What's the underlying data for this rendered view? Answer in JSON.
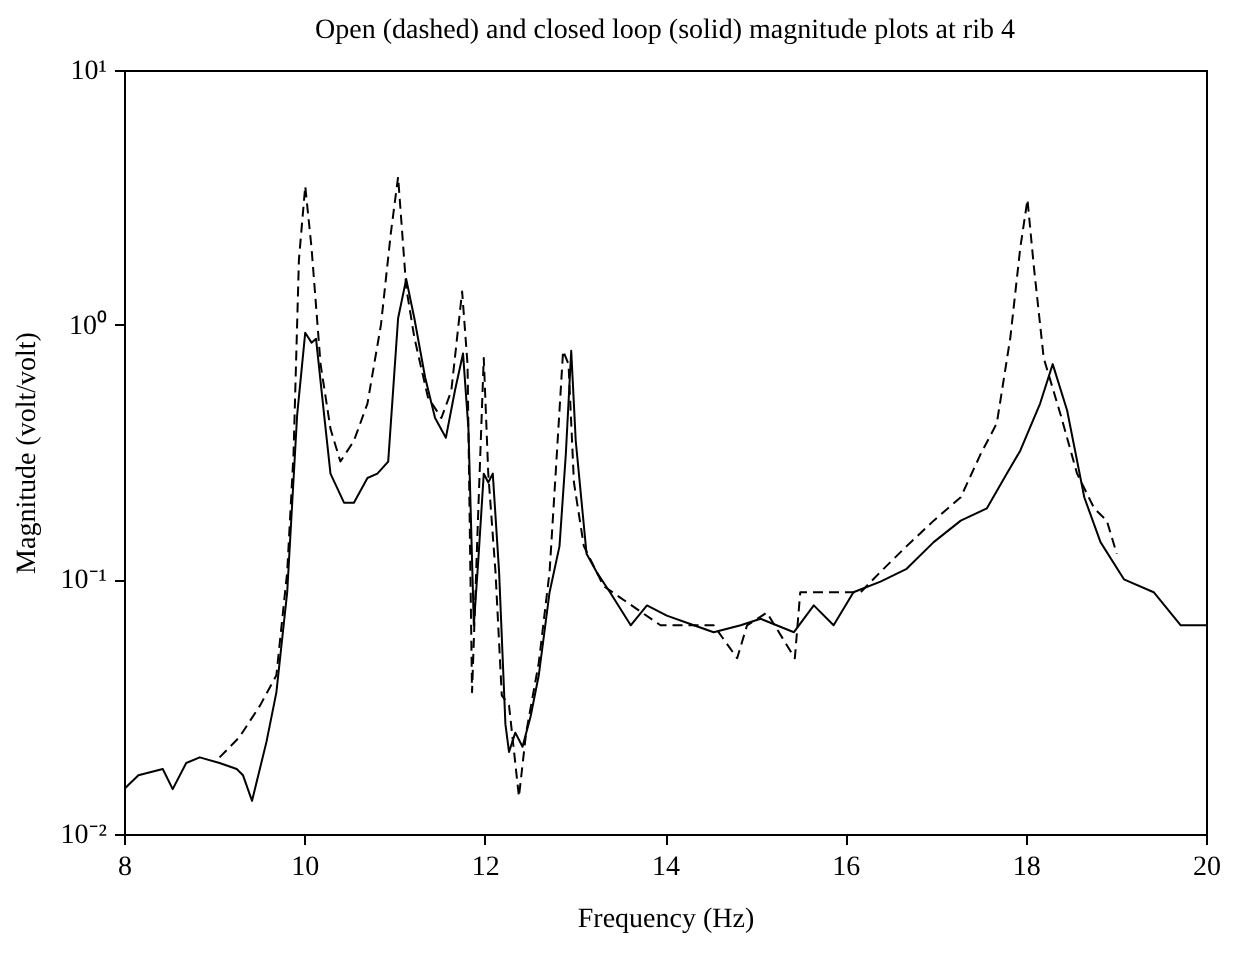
{
  "chart_data": {
    "type": "line",
    "title": "Open (dashed) and closed loop (solid) magnitude plots at rib 4",
    "xlabel": "Frequency (Hz)",
    "ylabel": "Magnitude (volt/volt)",
    "log": "y",
    "grid": false,
    "marker": "none",
    "xlim": [
      8,
      20
    ],
    "xticks": [
      8,
      10,
      12,
      14,
      16,
      18,
      20
    ],
    "ylim": [
      0.01,
      10
    ],
    "yticks": [
      {
        "value": 0.01,
        "label": "10⁻²"
      },
      {
        "value": 0.1,
        "label": "10⁻¹"
      },
      {
        "value": 1,
        "label": "10⁰"
      },
      {
        "value": 10,
        "label": "10¹"
      }
    ],
    "series": [
      {
        "color": "#000000",
        "line_style": "solid",
        "x": [
          8.0,
          8.16,
          8.43,
          8.54,
          8.69,
          8.84,
          9.06,
          9.25,
          9.32,
          9.42,
          9.58,
          9.69,
          9.81,
          9.92,
          10.01,
          10.08,
          10.13,
          10.22,
          10.29,
          10.44,
          10.55,
          10.7,
          10.81,
          10.93,
          11.04,
          11.13,
          11.22,
          11.34,
          11.45,
          11.57,
          11.67,
          11.76,
          11.82,
          11.88,
          11.93,
          11.99,
          12.04,
          12.09,
          12.16,
          12.23,
          12.27,
          12.34,
          12.42,
          12.51,
          12.6,
          12.72,
          12.83,
          12.9,
          12.96,
          13.01,
          13.13,
          13.24,
          13.39,
          13.62,
          13.8,
          14.02,
          14.32,
          14.54,
          14.84,
          15.06,
          15.43,
          15.65,
          15.87,
          16.09,
          16.39,
          16.68,
          16.98,
          17.28,
          17.57,
          17.79,
          17.94,
          18.16,
          18.3,
          18.46,
          18.65,
          18.83,
          19.09,
          19.42,
          19.72,
          20.0
        ],
        "values": [
          0.015,
          0.017,
          0.018,
          0.015,
          0.019,
          0.02,
          0.019,
          0.018,
          0.017,
          0.0135,
          0.023,
          0.036,
          0.089,
          0.44,
          0.93,
          0.85,
          0.88,
          0.44,
          0.26,
          0.2,
          0.2,
          0.25,
          0.26,
          0.29,
          1.06,
          1.51,
          1.06,
          0.62,
          0.43,
          0.36,
          0.55,
          0.77,
          0.39,
          0.066,
          0.12,
          0.26,
          0.24,
          0.26,
          0.107,
          0.027,
          0.021,
          0.025,
          0.022,
          0.029,
          0.042,
          0.089,
          0.135,
          0.31,
          0.79,
          0.35,
          0.126,
          0.107,
          0.089,
          0.066,
          0.079,
          0.072,
          0.066,
          0.062,
          0.066,
          0.07,
          0.062,
          0.079,
          0.066,
          0.089,
          0.098,
          0.11,
          0.14,
          0.17,
          0.19,
          0.26,
          0.32,
          0.49,
          0.7,
          0.46,
          0.21,
          0.14,
          0.1,
          0.089,
          0.066,
          0.066
        ]
      },
      {
        "color": "#000000",
        "line_style": "dashed",
        "x": [
          9.06,
          9.28,
          9.51,
          9.69,
          9.81,
          9.88,
          9.94,
          10.01,
          10.08,
          10.18,
          10.29,
          10.4,
          10.55,
          10.7,
          10.85,
          10.96,
          11.04,
          11.13,
          11.22,
          11.37,
          11.52,
          11.63,
          11.75,
          11.81,
          11.86,
          11.93,
          11.99,
          12.04,
          12.12,
          12.19,
          12.27,
          12.38,
          12.46,
          12.6,
          12.72,
          12.79,
          12.87,
          12.93,
          12.99,
          13.1,
          13.32,
          13.95,
          14.54,
          14.8,
          14.91,
          15.13,
          15.44,
          15.5,
          15.87,
          16.17,
          16.39,
          16.68,
          16.98,
          17.28,
          17.5,
          17.68,
          17.83,
          17.94,
          18.02,
          18.09,
          18.2,
          18.39,
          18.57,
          18.76,
          18.9,
          19.01
        ],
        "values": [
          0.02,
          0.024,
          0.032,
          0.042,
          0.107,
          0.31,
          1.8,
          3.5,
          2.0,
          0.7,
          0.39,
          0.29,
          0.35,
          0.49,
          1.0,
          2.3,
          3.8,
          1.4,
          0.89,
          0.52,
          0.43,
          0.55,
          1.35,
          0.7,
          0.036,
          0.19,
          0.74,
          0.26,
          0.107,
          0.035,
          0.032,
          0.014,
          0.025,
          0.047,
          0.107,
          0.27,
          0.79,
          0.7,
          0.24,
          0.135,
          0.094,
          0.066,
          0.066,
          0.049,
          0.066,
          0.074,
          0.049,
          0.089,
          0.089,
          0.089,
          0.107,
          0.135,
          0.17,
          0.21,
          0.31,
          0.41,
          0.89,
          2.0,
          3.1,
          1.7,
          0.74,
          0.44,
          0.26,
          0.19,
          0.17,
          0.126
        ]
      }
    ]
  }
}
